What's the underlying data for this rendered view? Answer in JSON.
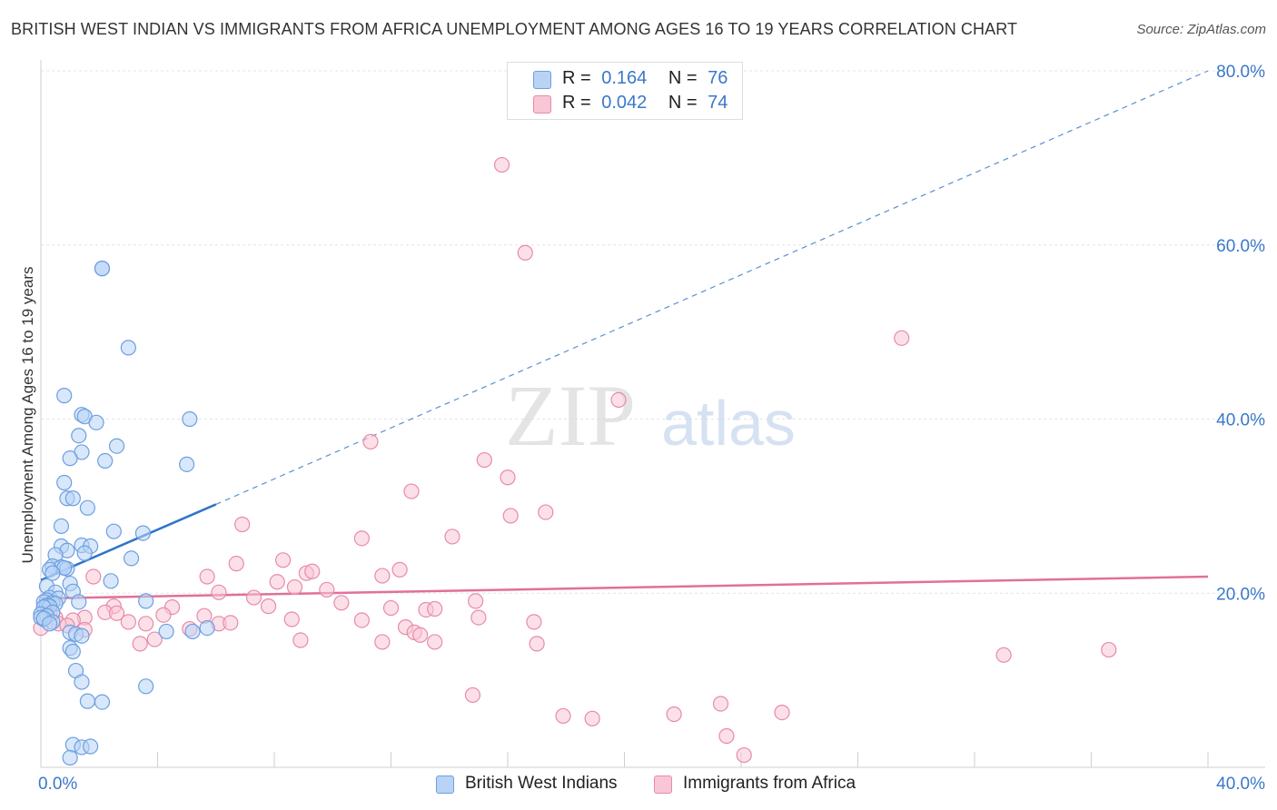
{
  "title": "BRITISH WEST INDIAN VS IMMIGRANTS FROM AFRICA UNEMPLOYMENT AMONG AGES 16 TO 19 YEARS CORRELATION CHART",
  "source": "Source: ZipAtlas.com",
  "watermark": {
    "zip": "ZIP",
    "atlas": "atlas"
  },
  "legend": {
    "r_label": "R =",
    "n_label": "N =",
    "series1": {
      "r": "0.164",
      "n": "76"
    },
    "series2": {
      "r": "0.042",
      "n": "74"
    }
  },
  "colors": {
    "blue_fill": "#b8d3f5",
    "blue_stroke": "#6d9fe0",
    "blue_line": "#2f74c9",
    "pink_fill": "#f9c6d6",
    "pink_stroke": "#e88aaa",
    "pink_line": "#e0709a",
    "tick_label": "#3a78c9"
  },
  "chart_data": {
    "type": "scatter",
    "title": "BRITISH WEST INDIAN VS IMMIGRANTS FROM AFRICA UNEMPLOYMENT AMONG AGES 16 TO 19 YEARS CORRELATION CHART",
    "xlabel": "",
    "ylabel": "Unemployment Among Ages 16 to 19 years",
    "xlim": [
      0,
      40
    ],
    "ylim": [
      0,
      80
    ],
    "x_tick_labels": [
      "0.0%",
      "40.0%"
    ],
    "y_ticks": [
      20,
      40,
      60,
      80
    ],
    "y_tick_labels": [
      "20.0%",
      "40.0%",
      "60.0%",
      "80.0%"
    ],
    "grid": true,
    "legend_position": "top-center",
    "series": [
      {
        "name": "British West Indians",
        "color": "#b8d3f5",
        "trend": {
          "x0": 0,
          "y0": 21.5,
          "x1": 6.0,
          "y1": 30.2,
          "extend_to_x": 40,
          "extend_to_y": 80
        },
        "points": [
          [
            2.1,
            57.3
          ],
          [
            2.1,
            57.3
          ],
          [
            3.0,
            48.2
          ],
          [
            0.8,
            42.7
          ],
          [
            1.4,
            40.5
          ],
          [
            1.5,
            40.3
          ],
          [
            1.9,
            39.6
          ],
          [
            5.1,
            40.0
          ],
          [
            1.3,
            38.1
          ],
          [
            2.6,
            36.9
          ],
          [
            1.4,
            36.2
          ],
          [
            1.0,
            35.5
          ],
          [
            2.2,
            35.2
          ],
          [
            5.0,
            34.8
          ],
          [
            0.8,
            32.7
          ],
          [
            0.9,
            30.9
          ],
          [
            1.1,
            30.9
          ],
          [
            1.6,
            29.8
          ],
          [
            0.7,
            27.7
          ],
          [
            2.5,
            27.1
          ],
          [
            3.5,
            26.9
          ],
          [
            0.7,
            25.4
          ],
          [
            1.4,
            25.5
          ],
          [
            1.7,
            25.4
          ],
          [
            0.9,
            24.9
          ],
          [
            1.5,
            24.6
          ],
          [
            0.5,
            24.4
          ],
          [
            3.1,
            24.0
          ],
          [
            0.4,
            23.1
          ],
          [
            0.7,
            23.0
          ],
          [
            0.9,
            22.8
          ],
          [
            0.8,
            22.9
          ],
          [
            0.3,
            22.7
          ],
          [
            0.4,
            22.3
          ],
          [
            2.4,
            21.4
          ],
          [
            1.0,
            21.1
          ],
          [
            0.2,
            20.8
          ],
          [
            1.1,
            20.2
          ],
          [
            0.5,
            20.1
          ],
          [
            0.3,
            19.5
          ],
          [
            0.6,
            19.4
          ],
          [
            0.2,
            19.2
          ],
          [
            0.1,
            19.0
          ],
          [
            0.4,
            18.9
          ],
          [
            0.5,
            18.8
          ],
          [
            0.2,
            18.6
          ],
          [
            1.3,
            19.0
          ],
          [
            0.3,
            18.5
          ],
          [
            0.1,
            18.4
          ],
          [
            0.0,
            17.6
          ],
          [
            0.2,
            17.3
          ],
          [
            0.4,
            17.8
          ],
          [
            3.6,
            19.1
          ],
          [
            0.1,
            17.0
          ],
          [
            0.2,
            17.4
          ],
          [
            0.4,
            16.7
          ],
          [
            1.0,
            15.5
          ],
          [
            1.2,
            15.3
          ],
          [
            1.4,
            15.1
          ],
          [
            4.3,
            15.6
          ],
          [
            5.2,
            15.6
          ],
          [
            5.7,
            16.0
          ],
          [
            1.0,
            13.7
          ],
          [
            1.1,
            13.3
          ],
          [
            1.2,
            11.1
          ],
          [
            1.4,
            9.8
          ],
          [
            1.6,
            7.6
          ],
          [
            2.1,
            7.5
          ],
          [
            3.6,
            9.3
          ],
          [
            1.1,
            2.6
          ],
          [
            1.4,
            2.3
          ],
          [
            1.7,
            2.4
          ],
          [
            1.0,
            1.1
          ],
          [
            0.0,
            17.2
          ],
          [
            0.1,
            17.1
          ],
          [
            0.3,
            16.5
          ]
        ]
      },
      {
        "name": "Immigrants from Africa",
        "color": "#f9c6d6",
        "trend": {
          "x0": 0,
          "y0": 19.4,
          "x1": 40,
          "y1": 21.9
        },
        "points": [
          [
            15.8,
            69.2
          ],
          [
            16.6,
            59.1
          ],
          [
            29.5,
            49.3
          ],
          [
            19.8,
            42.2
          ],
          [
            11.3,
            37.4
          ],
          [
            15.2,
            35.3
          ],
          [
            16.0,
            33.3
          ],
          [
            12.7,
            31.7
          ],
          [
            16.1,
            28.9
          ],
          [
            17.3,
            29.3
          ],
          [
            6.9,
            27.9
          ],
          [
            11.0,
            26.3
          ],
          [
            14.1,
            26.5
          ],
          [
            8.3,
            23.8
          ],
          [
            6.7,
            23.4
          ],
          [
            9.1,
            22.3
          ],
          [
            9.3,
            22.5
          ],
          [
            11.7,
            22.0
          ],
          [
            12.3,
            22.7
          ],
          [
            5.7,
            21.9
          ],
          [
            1.8,
            21.9
          ],
          [
            8.1,
            21.3
          ],
          [
            8.7,
            20.7
          ],
          [
            9.8,
            20.4
          ],
          [
            6.1,
            20.1
          ],
          [
            7.3,
            19.5
          ],
          [
            10.3,
            18.9
          ],
          [
            14.9,
            19.1
          ],
          [
            2.5,
            18.5
          ],
          [
            4.5,
            18.4
          ],
          [
            7.8,
            18.5
          ],
          [
            12.0,
            18.3
          ],
          [
            13.2,
            18.1
          ],
          [
            13.5,
            18.2
          ],
          [
            2.2,
            17.8
          ],
          [
            2.6,
            17.7
          ],
          [
            4.2,
            17.5
          ],
          [
            5.6,
            17.4
          ],
          [
            0.3,
            17.6
          ],
          [
            0.5,
            17.2
          ],
          [
            1.5,
            17.2
          ],
          [
            1.1,
            16.9
          ],
          [
            3.0,
            16.7
          ],
          [
            3.6,
            16.5
          ],
          [
            6.1,
            16.5
          ],
          [
            6.5,
            16.6
          ],
          [
            8.6,
            17.0
          ],
          [
            11.0,
            16.9
          ],
          [
            15.0,
            17.2
          ],
          [
            16.9,
            16.7
          ],
          [
            0.6,
            16.5
          ],
          [
            0.9,
            16.3
          ],
          [
            5.1,
            15.9
          ],
          [
            1.5,
            15.8
          ],
          [
            12.5,
            16.1
          ],
          [
            12.8,
            15.5
          ],
          [
            13.0,
            15.2
          ],
          [
            3.9,
            14.7
          ],
          [
            3.4,
            14.2
          ],
          [
            8.9,
            14.6
          ],
          [
            11.7,
            14.4
          ],
          [
            13.5,
            14.4
          ],
          [
            17.0,
            14.2
          ],
          [
            0.0,
            16.0
          ],
          [
            33.0,
            12.9
          ],
          [
            36.6,
            13.5
          ],
          [
            14.8,
            8.3
          ],
          [
            23.3,
            7.3
          ],
          [
            17.9,
            5.9
          ],
          [
            18.9,
            5.6
          ],
          [
            21.7,
            6.1
          ],
          [
            25.4,
            6.3
          ],
          [
            23.5,
            3.6
          ],
          [
            24.1,
            1.4
          ]
        ]
      }
    ]
  },
  "bottom_legend": [
    "British West Indians",
    "Immigrants from Africa"
  ]
}
